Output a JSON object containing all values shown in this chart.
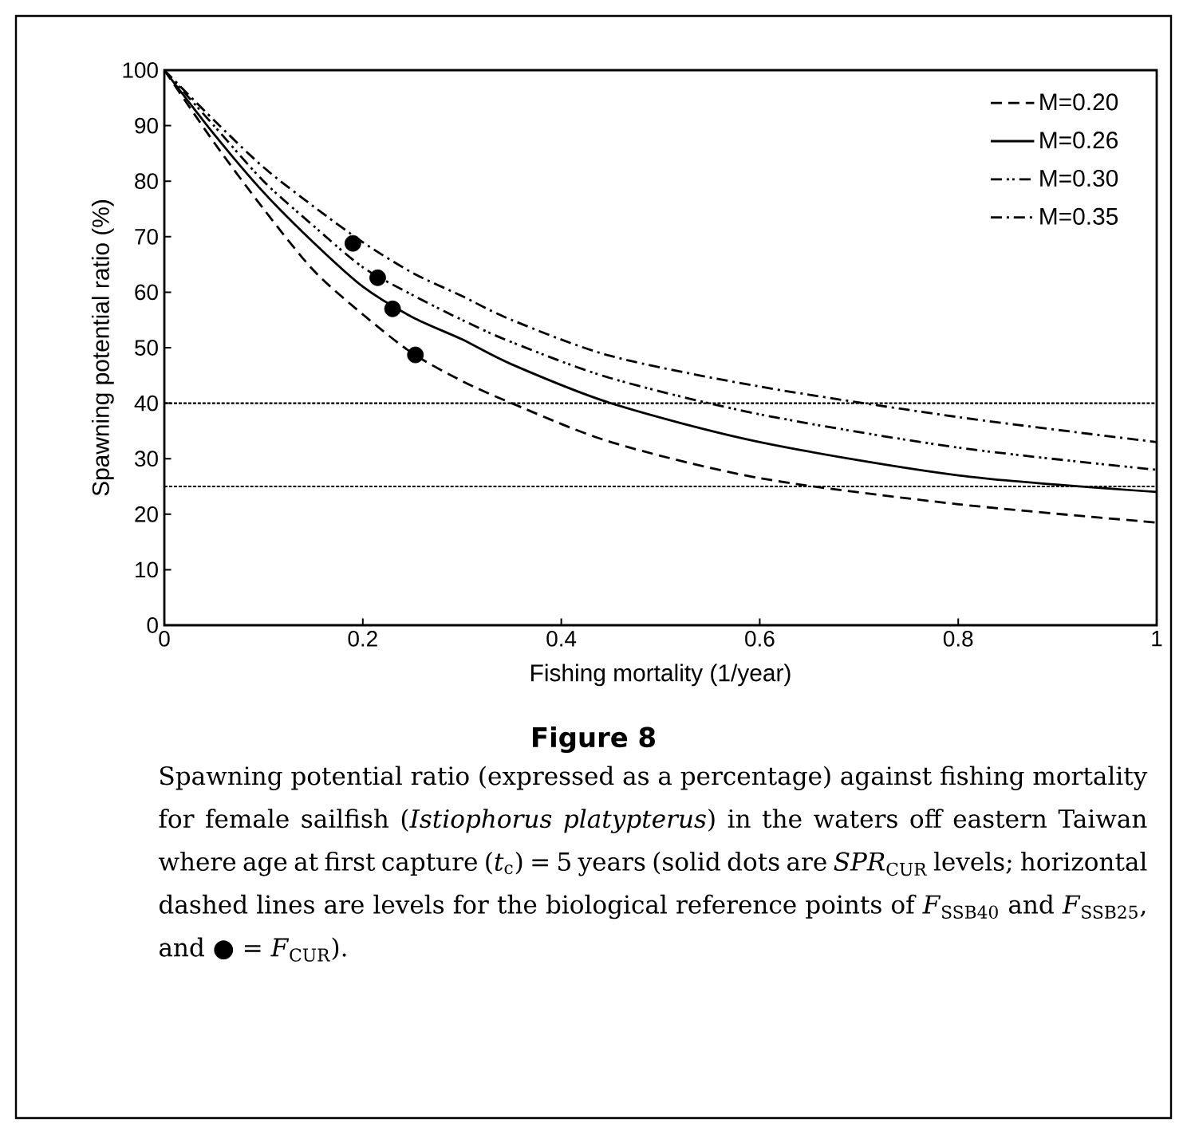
{
  "chart_data": {
    "type": "line",
    "title": "Figure 8",
    "xlabel": "Fishing mortality (1/year)",
    "ylabel": "Spawning potential ratio (%)",
    "annotations": [
      "Spawning potential ratio (expressed as a percentage) against fishing mortality for female sailfish (*Istiophorus platypterus*) in the waters off eastern Taiwan where age at first capture (*t*$_{c}$) = 5 years (solid dots are *SPR*$_{CUR}$ levels; horizontal dashed lines are levels for the biological reference points of *F*$_{SSB40}$ and *F*$_{SSB25}$, and ● = *F*$_{CUR}$)."
    ],
    "x": [
      0,
      0.05,
      0.1,
      0.15,
      0.2,
      0.25,
      0.3,
      0.35,
      0.45,
      0.6,
      0.8,
      1.0
    ],
    "series": [
      {
        "name": "M=0.20",
        "color": "#000000",
        "line_style": "dashed",
        "values": [
          100,
          87,
          75,
          64,
          56,
          49,
          44,
          40,
          33,
          26.5,
          21.8,
          18.5
        ]
      },
      {
        "name": "M=0.26",
        "color": "#000000",
        "line_style": "solid",
        "values": [
          100,
          88.5,
          78,
          69,
          61,
          55.5,
          51.5,
          47,
          40,
          33,
          27,
          24
        ]
      },
      {
        "name": "M=0.30",
        "color": "#000000",
        "line_style": "dashdotdot",
        "values": [
          100,
          90,
          80,
          72,
          64.5,
          59.5,
          55,
          51,
          44.5,
          38,
          32,
          28
        ]
      },
      {
        "name": "M=0.35",
        "color": "#000000",
        "line_style": "dashdot",
        "values": [
          100,
          91,
          82.5,
          75.5,
          69,
          63.5,
          59.3,
          55,
          48.5,
          43,
          37.5,
          33
        ]
      },
      {
        "type": "scatter",
        "marker": "circle",
        "color": "#000000",
        "x": [
          0.19,
          0.215,
          0.23,
          0.253
        ],
        "values": [
          68.8,
          62.6,
          57,
          48.7
        ]
      }
    ],
    "ref_lines": [
      {
        "axis": "y",
        "value": 40,
        "color": "#000000",
        "line_style": "dotted"
      },
      {
        "axis": "y",
        "value": 25,
        "color": "#000000",
        "line_style": "dotted"
      }
    ],
    "xlim": [
      0,
      1
    ],
    "ylim": [
      0,
      100
    ],
    "xticks": [
      0,
      0.2,
      0.4,
      0.6,
      0.8,
      1
    ],
    "yticks": [
      0,
      10,
      20,
      30,
      40,
      50,
      60,
      70,
      80,
      90,
      100
    ],
    "grid": false,
    "legend": "top right",
    "marker": "none"
  }
}
